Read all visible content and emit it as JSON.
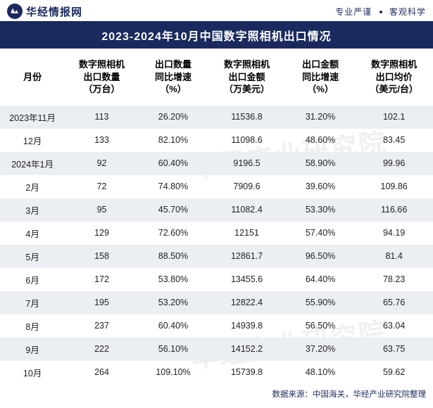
{
  "header": {
    "logo_text": "华经情报网",
    "tagline_left": "专业严谨",
    "tagline_right": "客观科学"
  },
  "title": "2023-2024年10月中国数字照相机出口情况",
  "watermark_text": "华经产业研究院",
  "table": {
    "columns": [
      "月份",
      "数字照相机出口数量（万台）",
      "出口数量同比增速（%）",
      "数字照相机出口金额（万美元）",
      "出口金额同比增速（%）",
      "数字照相机出口均价（美元/台）"
    ],
    "columns_lines": [
      [
        "月份"
      ],
      [
        "数字照相机",
        "出口数量",
        "（万台）"
      ],
      [
        "出口数量",
        "同比增速",
        "（%）"
      ],
      [
        "数字照相机",
        "出口金额",
        "（万美元）"
      ],
      [
        "出口金额",
        "同比增速",
        "（%）"
      ],
      [
        "数字照相机",
        "出口均价",
        "（美元/台）"
      ]
    ],
    "rows": [
      [
        "2023年11月",
        "113",
        "26.20%",
        "11536.8",
        "31.20%",
        "102.1"
      ],
      [
        "12月",
        "133",
        "82.10%",
        "11098.6",
        "48.60%",
        "83.45"
      ],
      [
        "2024年1月",
        "92",
        "60.40%",
        "9196.5",
        "58.90%",
        "99.96"
      ],
      [
        "2月",
        "72",
        "74.80%",
        "7909.6",
        "39.60%",
        "109.86"
      ],
      [
        "3月",
        "95",
        "45.70%",
        "11082.4",
        "53.30%",
        "116.66"
      ],
      [
        "4月",
        "129",
        "72.60%",
        "12151",
        "57.40%",
        "94.19"
      ],
      [
        "5月",
        "158",
        "88.50%",
        "12861.7",
        "96.50%",
        "81.4"
      ],
      [
        "6月",
        "172",
        "53.80%",
        "13455.6",
        "64.40%",
        "78.23"
      ],
      [
        "7月",
        "195",
        "53.20%",
        "12822.4",
        "55.90%",
        "65.76"
      ],
      [
        "8月",
        "237",
        "60.40%",
        "14939.8",
        "56.50%",
        "63.04"
      ],
      [
        "9月",
        "222",
        "56.10%",
        "14152.2",
        "37.20%",
        "63.75"
      ],
      [
        "10月",
        "264",
        "109.10%",
        "15739.8",
        "48.10%",
        "59.62"
      ]
    ],
    "col_widths": [
      "15%",
      "17%",
      "16%",
      "18%",
      "16%",
      "18%"
    ]
  },
  "footer": "数据来源：中国海关，华经产业研究院整理",
  "colors": {
    "brand": "#1a2a5e",
    "alt_row": "#ebeef3",
    "background": "#ffffff",
    "watermark": "rgba(200,200,200,0.28)"
  }
}
